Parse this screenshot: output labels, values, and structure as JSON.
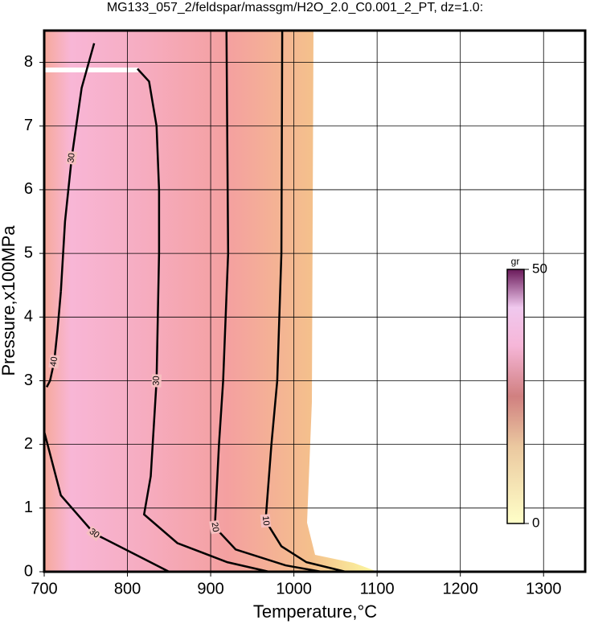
{
  "chart_data": {
    "type": "contour",
    "title": "MG133_057_2/feldspar/massgm/H2O_2.0_C0.001_2_PT, dz=1.0:",
    "x_label": "Temperature,°C",
    "y_label": "Pressure,x100MPa",
    "xlim": [
      700,
      1350
    ],
    "ylim": [
      0,
      8.5
    ],
    "xticks": [
      700,
      800,
      900,
      1000,
      1100,
      1200,
      1300
    ],
    "yticks": [
      0,
      1,
      2,
      3,
      4,
      5,
      6,
      7,
      8
    ],
    "grid": true,
    "series": [
      {
        "level": 10,
        "color": "#000000",
        "x": [
          986,
          985,
          980,
          973,
          966,
          985,
          1015,
          1062
        ],
        "y": [
          8.5,
          5,
          3,
          2,
          0.8,
          0.4,
          0.15,
          0
        ]
      },
      {
        "level": 20,
        "color": "#000000",
        "x": [
          919,
          921,
          915,
          910,
          905,
          930,
          990,
          1033
        ],
        "y": [
          8.5,
          5,
          3,
          2,
          0.7,
          0.35,
          0.1,
          0
        ]
      },
      {
        "level": 30,
        "color": "#000000",
        "x": [
          812,
          826,
          835,
          838,
          838,
          835,
          828,
          820,
          860,
          920,
          970
        ],
        "y": [
          7.9,
          7.7,
          7.0,
          6.0,
          5.0,
          3.0,
          1.5,
          0.9,
          0.45,
          0.15,
          0
        ]
      },
      {
        "level": 30,
        "color": "#000000",
        "x": [
          760,
          745,
          733,
          725,
          720
        ],
        "y": [
          8.3,
          7.6,
          6.5,
          5.5,
          4.4
        ]
      },
      {
        "level": 40,
        "color": "#000000",
        "x": [
          720,
          716,
          712,
          707,
          703
        ],
        "y": [
          4.4,
          3.8,
          3.3,
          3.0,
          2.9
        ]
      },
      {
        "level": 30,
        "color": "#000000",
        "x": [
          700,
          720,
          760,
          820,
          850
        ],
        "y": [
          2.2,
          1.2,
          0.6,
          0.2,
          0
        ]
      }
    ],
    "colorbar": {
      "label": "gr",
      "lim": [
        0,
        50
      ],
      "ticks": [
        0,
        50
      ]
    }
  }
}
